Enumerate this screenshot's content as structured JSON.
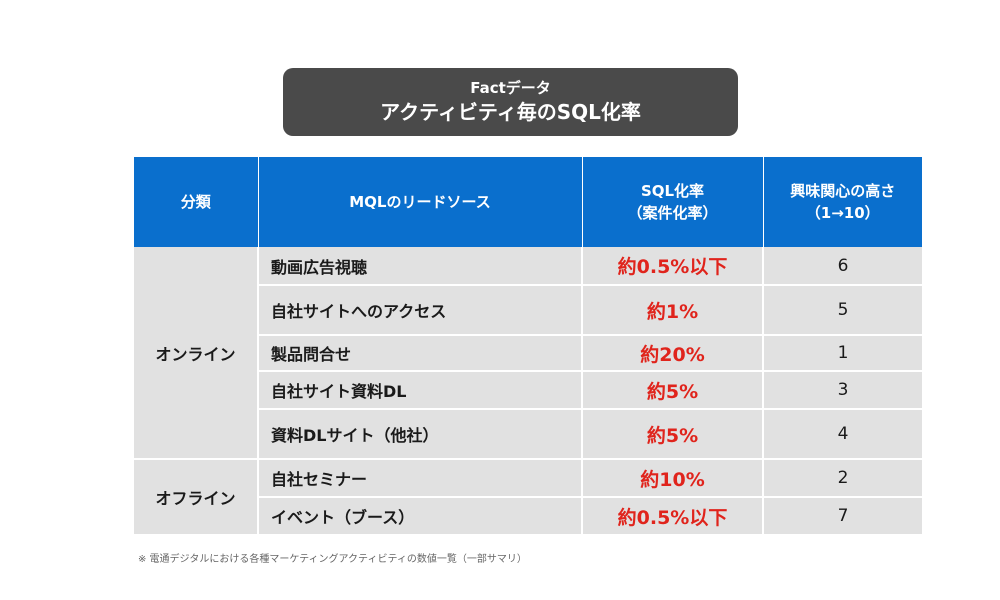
{
  "header": {
    "subtitle": "Factデータ",
    "title": "アクティビティ毎のSQL化率"
  },
  "table": {
    "headers": {
      "category": "分類",
      "source": "MQLのリードソース",
      "rate_line1": "SQL化率",
      "rate_line2": "（案件化率）",
      "interest_line1": "興味関心の高さ",
      "interest_line2": "（1→10）"
    },
    "groups": [
      {
        "name": "オンライン",
        "rows": [
          {
            "source": "動画広告視聴",
            "rate": "約0.5%以下",
            "interest": "6"
          },
          {
            "source": "自社サイトへのアクセス",
            "rate": "約1%",
            "interest": "5"
          },
          {
            "source": "製品問合せ",
            "rate": "約20%",
            "interest": "1"
          },
          {
            "source": "自社サイト資料DL",
            "rate": "約5%",
            "interest": "3"
          },
          {
            "source": "資料DLサイト（他社）",
            "rate": "約5%",
            "interest": "4"
          }
        ]
      },
      {
        "name": "オフライン",
        "rows": [
          {
            "source": "自社セミナー",
            "rate": "約10%",
            "interest": "2"
          },
          {
            "source": "イベント（ブース）",
            "rate": "約0.5%以下",
            "interest": "7"
          }
        ]
      }
    ]
  },
  "footnote": "※ 電通デジタルにおける各種マーケティングアクティビティの数値一覧（一部サマリ）"
}
